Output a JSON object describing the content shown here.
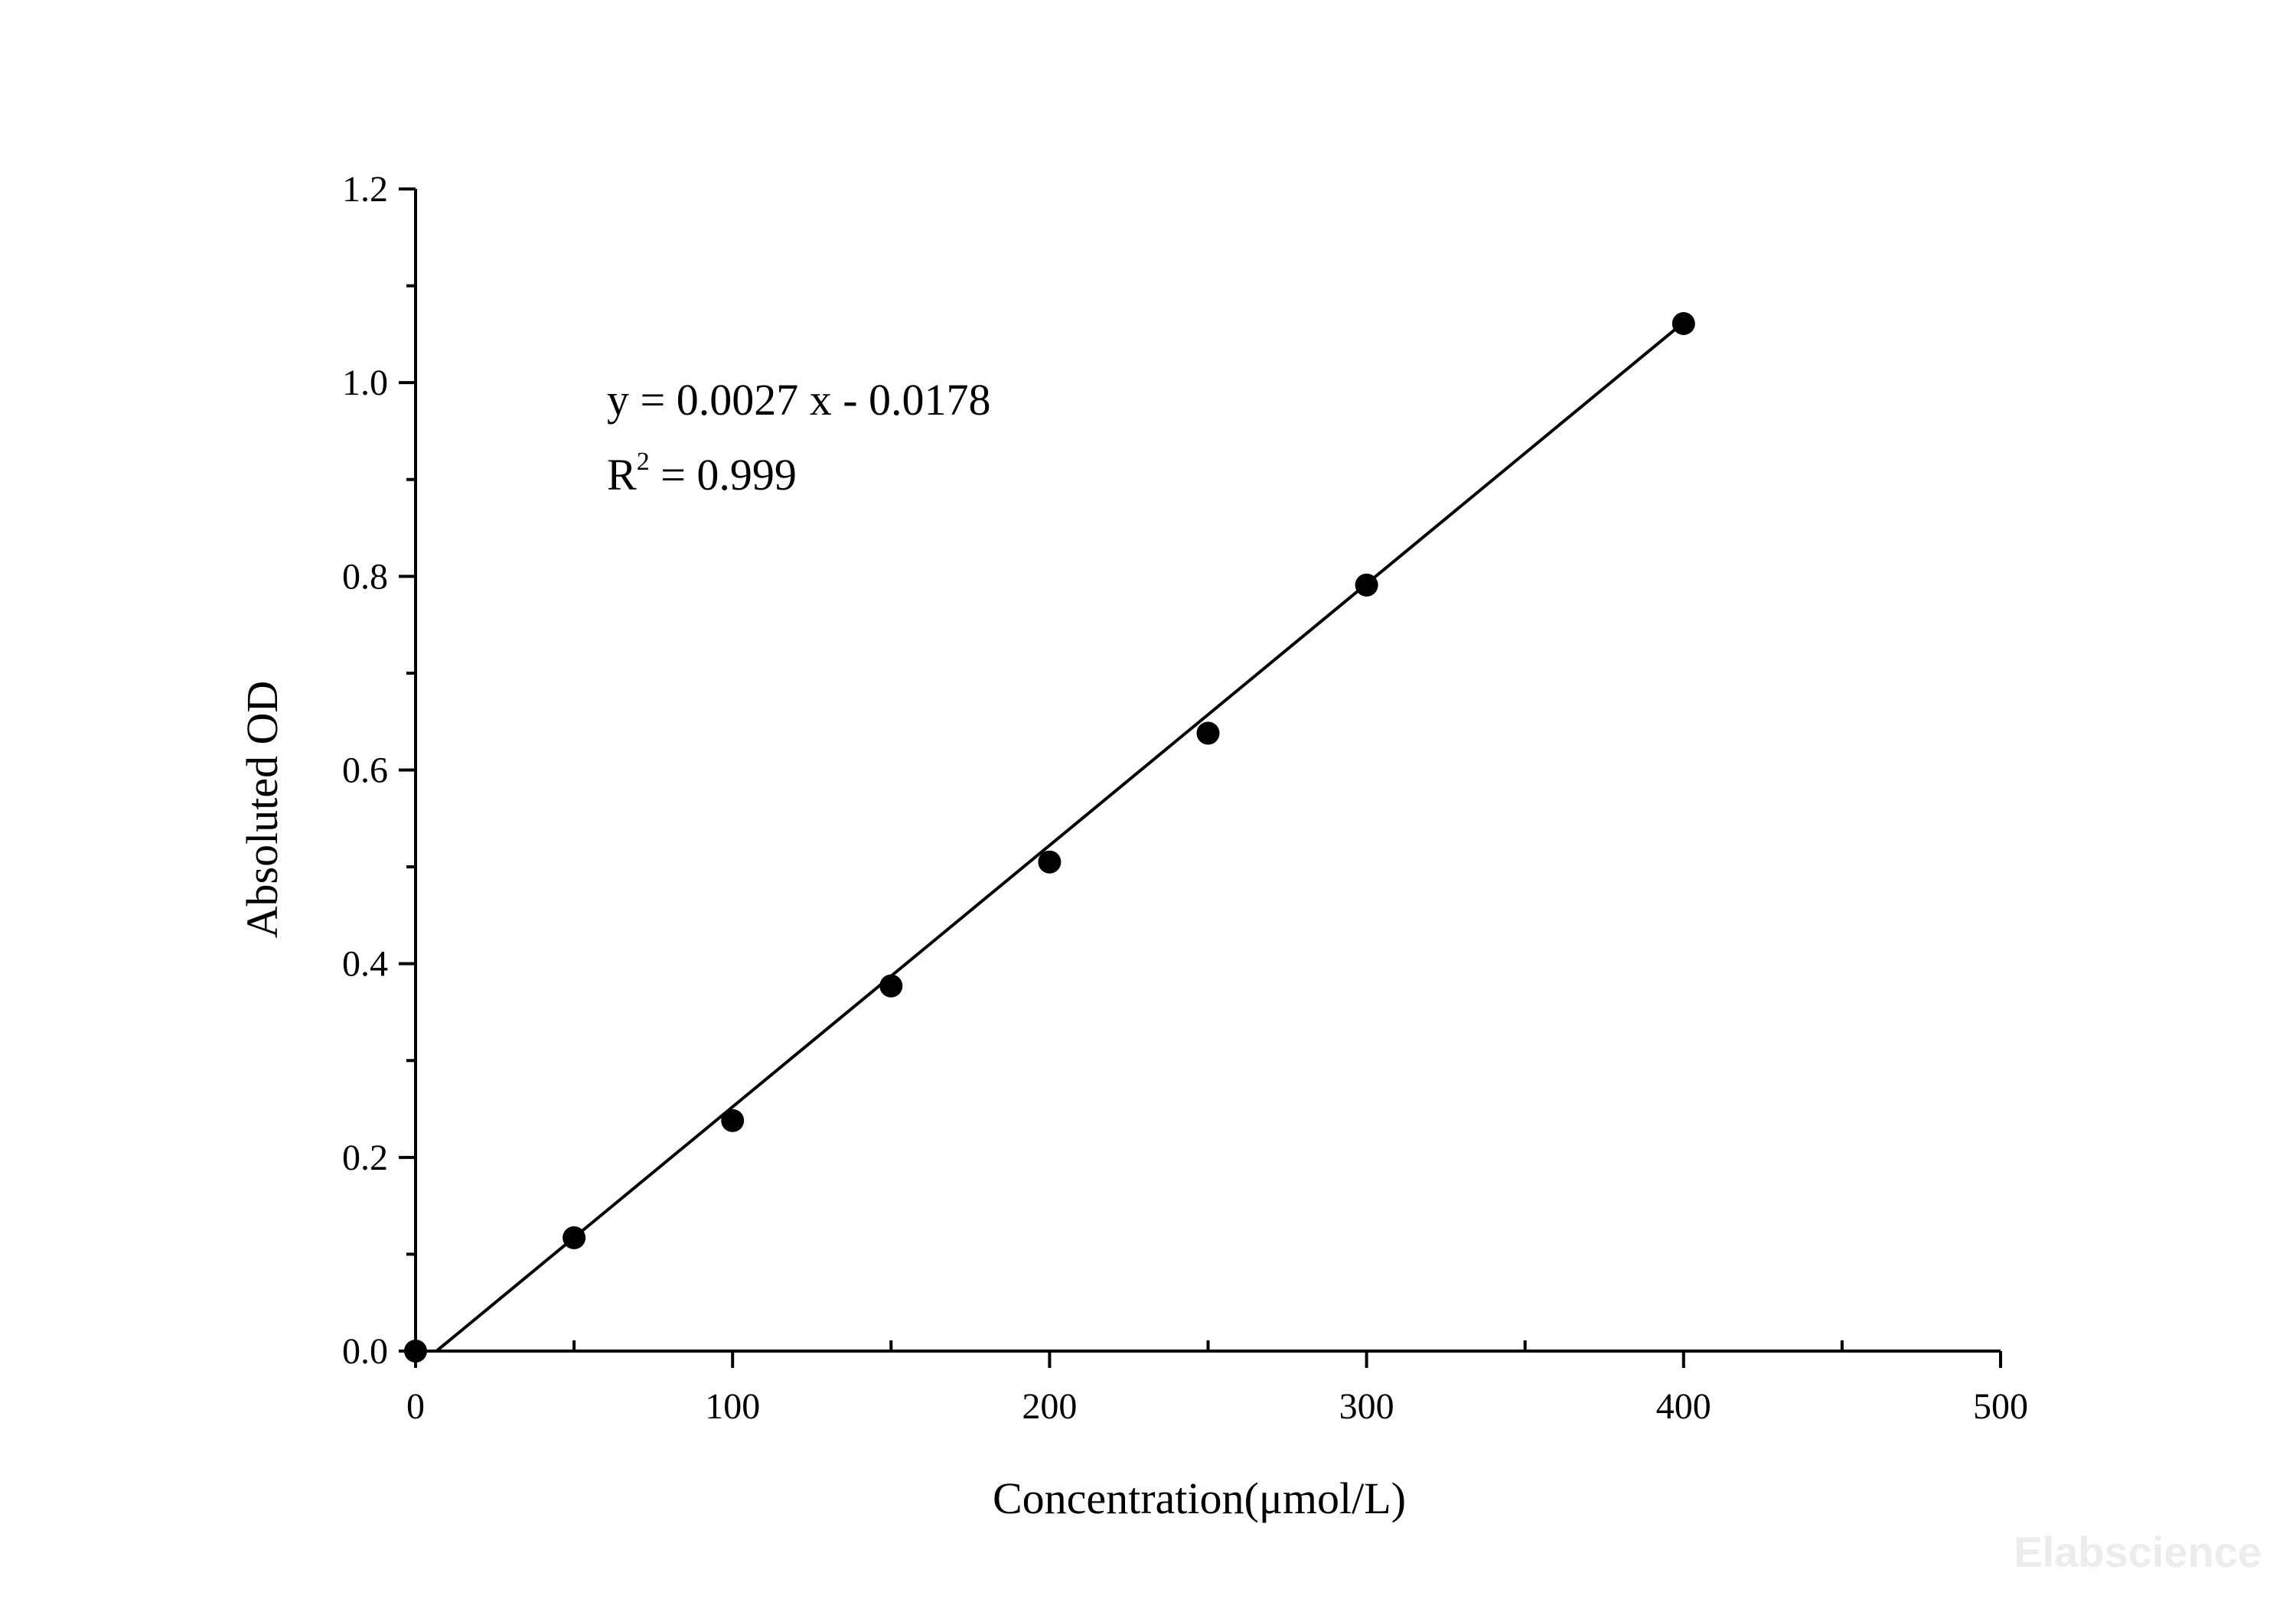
{
  "chart_data": {
    "type": "scatter",
    "title": "",
    "xlabel": "Concentration(μmol/L)",
    "ylabel": "Absoluted OD",
    "xlim": [
      0,
      500
    ],
    "ylim": [
      0,
      1.2
    ],
    "x_ticks": [
      "0",
      "100",
      "200",
      "300",
      "400",
      "500"
    ],
    "y_ticks": [
      "0.0",
      "0.2",
      "0.4",
      "0.6",
      "0.8",
      "1.0",
      "1.2"
    ],
    "x_tick_values": [
      0,
      100,
      200,
      300,
      400,
      500
    ],
    "y_tick_values": [
      0,
      0.2,
      0.4,
      0.6,
      0.8,
      1.0,
      1.2
    ],
    "x_minor_tick_values": [
      50,
      150,
      250,
      350,
      450
    ],
    "y_minor_tick_values": [
      0.1,
      0.3,
      0.5,
      0.7,
      0.9,
      1.1
    ],
    "grid": false,
    "series": [
      {
        "x": [
          0,
          50,
          100,
          150,
          200,
          250,
          300,
          400
        ],
        "y": [
          0.0,
          0.117,
          0.238,
          0.377,
          0.505,
          0.638,
          0.791,
          1.061
        ]
      }
    ],
    "fit_line": {
      "slope": 0.0027,
      "intercept": -0.0178,
      "x_range": [
        6.6,
        400
      ]
    },
    "annotation": {
      "equation": "y = 0.0027 x - 0.0178",
      "r2_prefix": "R",
      "r2_sup": "2",
      "r2_value": " = 0.999"
    },
    "watermark": "Elabscience"
  }
}
